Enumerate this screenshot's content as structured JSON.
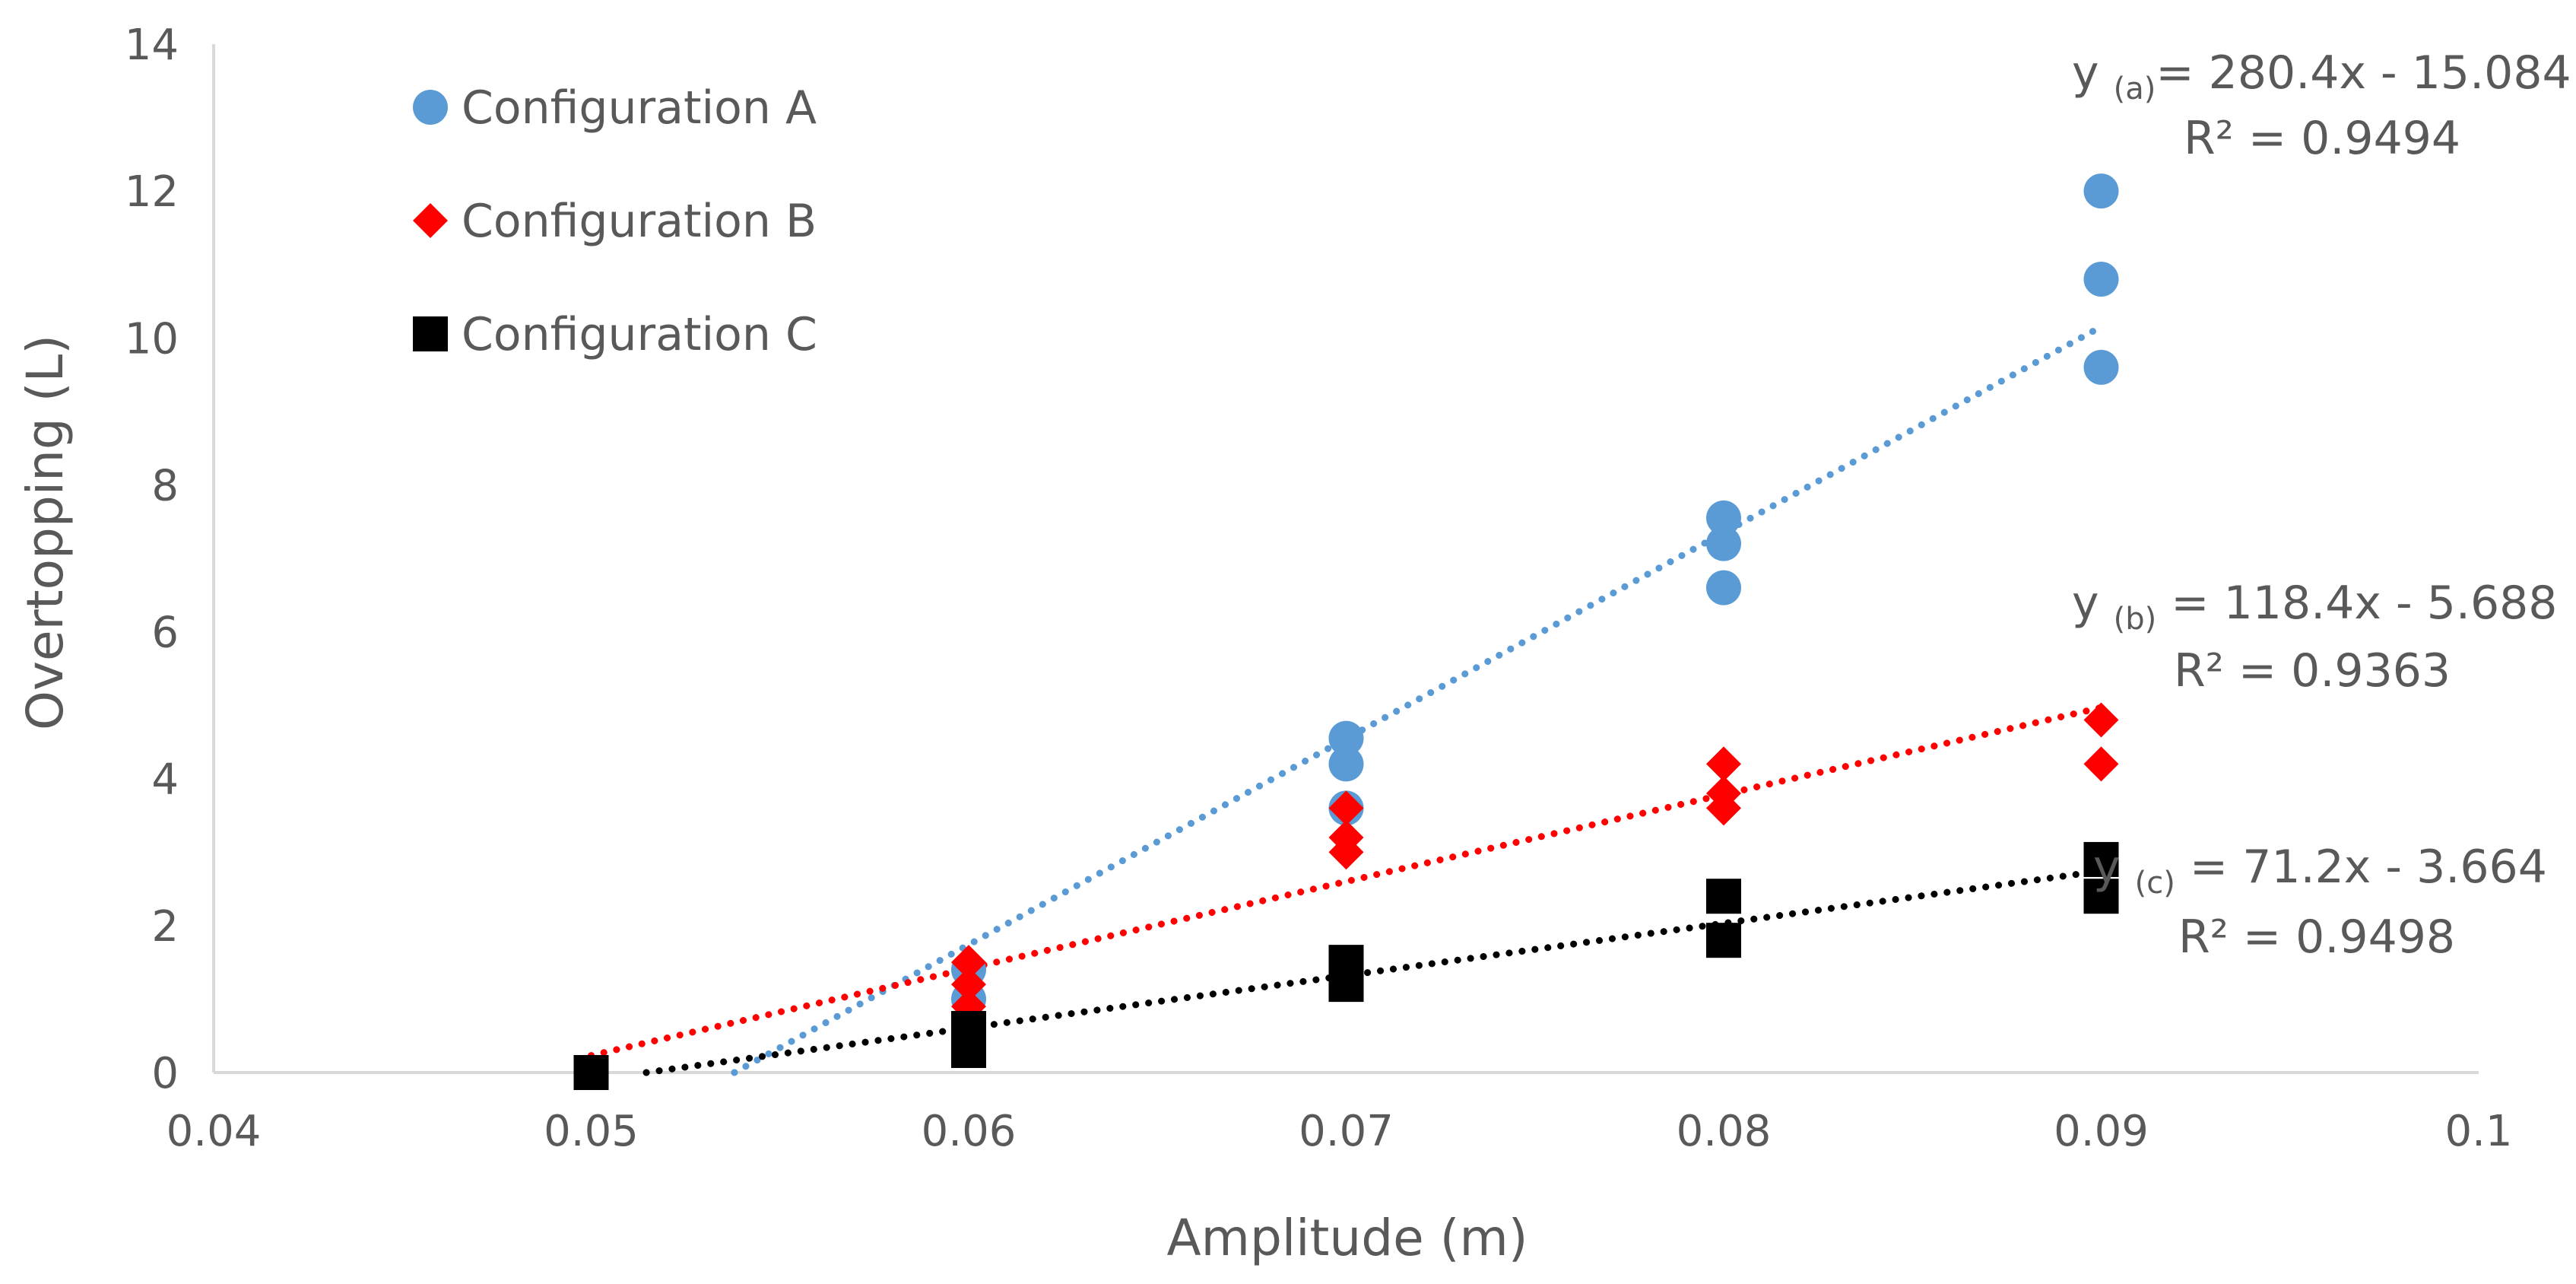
{
  "chart_data": {
    "type": "scatter",
    "title": "",
    "xlabel": "Amplitude (m)",
    "ylabel": "Overtopping (L)",
    "xlim": [
      0.04,
      0.1
    ],
    "ylim": [
      0,
      14
    ],
    "xticks": [
      0.04,
      0.05,
      0.06,
      0.07,
      0.08,
      0.09,
      0.1
    ],
    "yticks": [
      0,
      2,
      4,
      6,
      8,
      10,
      12,
      14
    ],
    "xtick_labels": [
      "0.04",
      "0.05",
      "0.06",
      "0.07",
      "0.08",
      "0.09",
      "0.1"
    ],
    "ytick_labels": [
      "0",
      "2",
      "4",
      "6",
      "8",
      "10",
      "12",
      "14"
    ],
    "gridlines": false,
    "legend_position": "top-left",
    "series": [
      {
        "name": "Configuration A",
        "marker": "circle",
        "color": "#5B9BD5",
        "points": [
          [
            0.05,
            0.0
          ],
          [
            0.06,
            0.6
          ],
          [
            0.06,
            1.0
          ],
          [
            0.06,
            1.4
          ],
          [
            0.07,
            3.6
          ],
          [
            0.07,
            4.2
          ],
          [
            0.07,
            4.55
          ],
          [
            0.08,
            6.6
          ],
          [
            0.08,
            7.2
          ],
          [
            0.08,
            7.55
          ],
          [
            0.09,
            9.6
          ],
          [
            0.09,
            10.8
          ],
          [
            0.09,
            12.0
          ]
        ],
        "trendline": {
          "slope": 280.4,
          "intercept": -15.084,
          "x_range": [
            0.05,
            0.09
          ]
        },
        "equation": {
          "prefix": "y ",
          "sub": "(a)",
          "rest": "= 280.4x - 15.084",
          "r2": "R² = 0.9494"
        }
      },
      {
        "name": "Configuration B",
        "marker": "diamond",
        "color": "#FF0000",
        "points": [
          [
            0.05,
            0.0
          ],
          [
            0.06,
            0.9
          ],
          [
            0.06,
            1.2
          ],
          [
            0.06,
            1.5
          ],
          [
            0.07,
            3.0
          ],
          [
            0.07,
            3.2
          ],
          [
            0.07,
            3.6
          ],
          [
            0.08,
            3.6
          ],
          [
            0.08,
            3.8
          ],
          [
            0.08,
            4.2
          ],
          [
            0.09,
            4.2
          ],
          [
            0.09,
            4.8
          ]
        ],
        "trendline": {
          "slope": 118.4,
          "intercept": -5.688,
          "x_range": [
            0.05,
            0.09
          ]
        },
        "equation": {
          "prefix": "y ",
          "sub": "(b)",
          "rest": " = 118.4x - 5.688",
          "r2": "R² = 0.9363"
        }
      },
      {
        "name": "Configuration C",
        "marker": "square",
        "color": "#000000",
        "points": [
          [
            0.05,
            0.0
          ],
          [
            0.06,
            0.3
          ],
          [
            0.06,
            0.6
          ],
          [
            0.07,
            1.2
          ],
          [
            0.07,
            1.5
          ],
          [
            0.08,
            1.8
          ],
          [
            0.08,
            2.4
          ],
          [
            0.09,
            2.4
          ],
          [
            0.09,
            2.9
          ]
        ],
        "trendline": {
          "slope": 71.2,
          "intercept": -3.664,
          "x_range": [
            0.05,
            0.09
          ]
        },
        "equation": {
          "prefix": "y ",
          "sub": "(c)",
          "rest": " = 71.2x - 3.664",
          "r2": "R² = 0.9498"
        }
      }
    ]
  }
}
